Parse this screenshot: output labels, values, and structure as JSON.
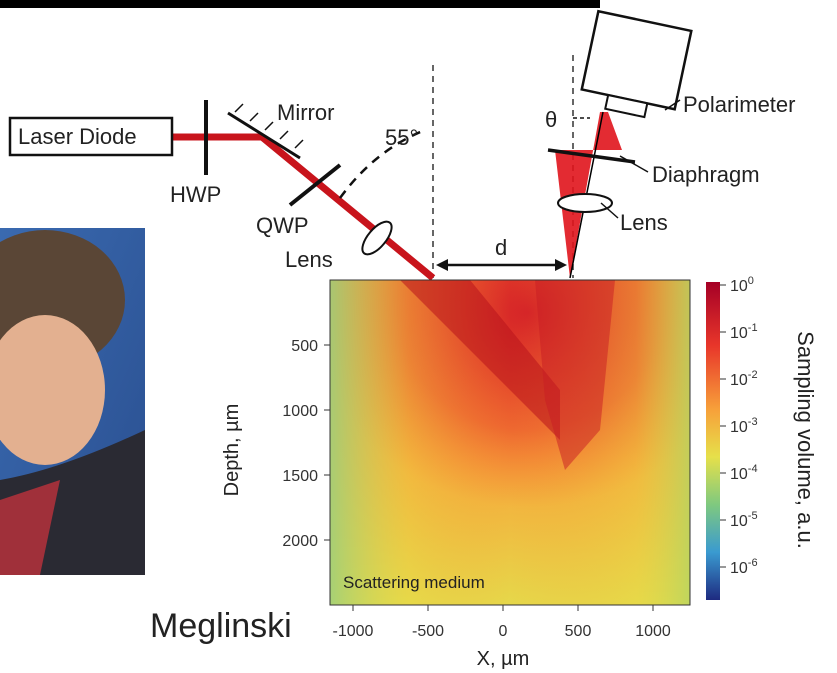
{
  "setup": {
    "laser": "Laser Diode",
    "hwp": "HWP",
    "mirror": "Mirror",
    "qwp": "QWP",
    "lens_in": "Lens",
    "angle": "55°",
    "distance": "d",
    "theta": "θ",
    "polarimeter": "Polarimeter",
    "diaphragm": "Diaphragm",
    "lens_out": "Lens"
  },
  "heatmap": {
    "medium": "Scattering medium",
    "x_label": "X, µm",
    "y_label": "Depth, µm",
    "xticks": [
      -1000,
      -500,
      0,
      500,
      1000
    ],
    "yticks": [
      500,
      1000,
      1500,
      2000
    ],
    "colorbar_label": "Sampling volume, a.u.",
    "colorbar_ticks": [
      {
        "base": "10",
        "exp": "0"
      },
      {
        "base": "10",
        "exp": "-1"
      },
      {
        "base": "10",
        "exp": "-2"
      },
      {
        "base": "10",
        "exp": "-3"
      },
      {
        "base": "10",
        "exp": "-4"
      },
      {
        "base": "10",
        "exp": "-5"
      },
      {
        "base": "10",
        "exp": "-6"
      }
    ]
  },
  "caption": "Meglinski"
}
